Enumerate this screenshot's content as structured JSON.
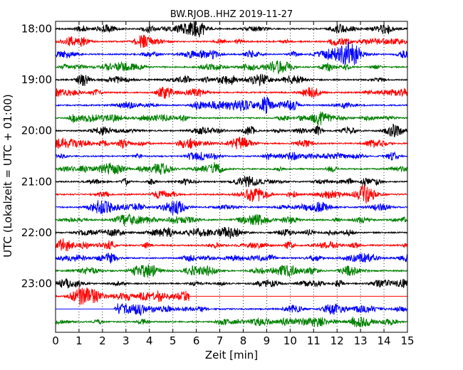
{
  "chart_data": {
    "type": "line",
    "title": "BW.RJOB..HHZ 2019-11-27",
    "xlabel": "Zeit  [min]",
    "ylabel": "UTC (Lokalzeit = UTC + 01:00)",
    "xlim": [
      0,
      15
    ],
    "x_ticks": [
      "0",
      "1",
      "2",
      "3",
      "4",
      "5",
      "6",
      "7",
      "8",
      "9",
      "10",
      "11",
      "12",
      "13",
      "14",
      "15"
    ],
    "y_tick_labels": [
      "18:00",
      "19:00",
      "20:00",
      "21:00",
      "22:00",
      "23:00"
    ],
    "grid": "vertical dotted lines at each minute",
    "trace_colors": [
      "#000000",
      "#ff0000",
      "#0000ff",
      "#008000"
    ],
    "traces": [
      {
        "start": "18:00",
        "data_from_min": 0,
        "data_to_min": 15
      },
      {
        "start": "18:15",
        "data_from_min": 0,
        "data_to_min": 15
      },
      {
        "start": "18:30",
        "data_from_min": 0,
        "data_to_min": 15
      },
      {
        "start": "18:45",
        "data_from_min": 0,
        "data_to_min": 15
      },
      {
        "start": "19:00",
        "data_from_min": 0,
        "data_to_min": 15
      },
      {
        "start": "19:15",
        "data_from_min": 0,
        "data_to_min": 15
      },
      {
        "start": "19:30",
        "data_from_min": 0,
        "data_to_min": 15
      },
      {
        "start": "19:45",
        "data_from_min": 0,
        "data_to_min": 15
      },
      {
        "start": "20:00",
        "data_from_min": 0,
        "data_to_min": 15
      },
      {
        "start": "20:15",
        "data_from_min": 0,
        "data_to_min": 15
      },
      {
        "start": "20:30",
        "data_from_min": 0,
        "data_to_min": 15
      },
      {
        "start": "20:45",
        "data_from_min": 0,
        "data_to_min": 15
      },
      {
        "start": "21:00",
        "data_from_min": 0,
        "data_to_min": 15
      },
      {
        "start": "21:15",
        "data_from_min": 0,
        "data_to_min": 15
      },
      {
        "start": "21:30",
        "data_from_min": 0,
        "data_to_min": 15
      },
      {
        "start": "21:45",
        "data_from_min": 0,
        "data_to_min": 15
      },
      {
        "start": "22:00",
        "data_from_min": 0,
        "data_to_min": 15
      },
      {
        "start": "22:15",
        "data_from_min": 0,
        "data_to_min": 15
      },
      {
        "start": "22:30",
        "data_from_min": 0,
        "data_to_min": 15
      },
      {
        "start": "22:45",
        "data_from_min": 0,
        "data_to_min": 15
      },
      {
        "start": "23:00",
        "data_from_min": 0,
        "data_to_min": 15
      },
      {
        "start": "23:15",
        "data_from_min": 0,
        "data_to_min": 5.7
      },
      {
        "start": "23:30",
        "data_from_min": 2.5,
        "data_to_min": 15
      },
      {
        "start": "23:45",
        "data_from_min": 0,
        "data_to_min": 15
      }
    ]
  }
}
